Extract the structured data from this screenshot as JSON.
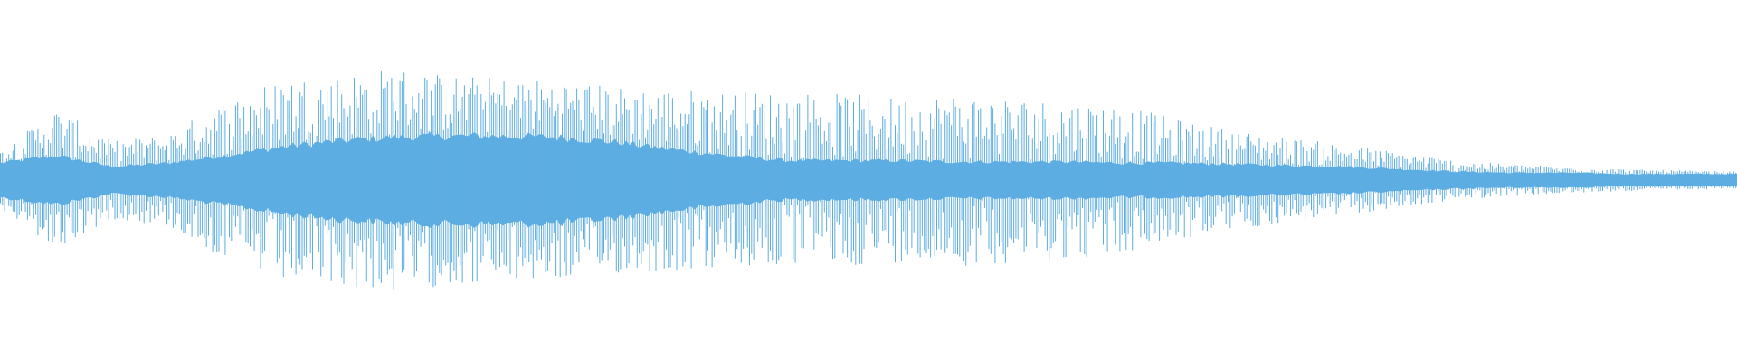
{
  "chart_data": {
    "type": "area",
    "title": "",
    "xlabel": "",
    "ylabel": "",
    "ylim": [
      -1,
      1
    ],
    "grid": false,
    "legend": "none",
    "color": "#5dade2",
    "series": [
      {
        "values_peak_envelope": [
          0.23,
          0.59,
          0.32,
          0.38,
          0.65,
          0.84,
          0.86,
          0.93,
          0.86,
          0.84,
          0.82,
          0.77,
          0.75,
          0.73,
          0.73,
          0.71,
          0.68,
          0.71,
          0.68,
          0.65,
          0.62,
          0.5,
          0.41,
          0.35,
          0.29,
          0.23,
          0.16,
          0.13,
          0.11,
          0.09,
          0.08,
          0.07
        ],
        "values_body_envelope": [
          0.14,
          0.2,
          0.11,
          0.14,
          0.2,
          0.27,
          0.32,
          0.35,
          0.36,
          0.36,
          0.35,
          0.31,
          0.25,
          0.2,
          0.16,
          0.16,
          0.16,
          0.15,
          0.15,
          0.15,
          0.14,
          0.14,
          0.13,
          0.12,
          0.11,
          0.09,
          0.07,
          0.06,
          0.06,
          0.05,
          0.05,
          0.05
        ]
      }
    ]
  }
}
